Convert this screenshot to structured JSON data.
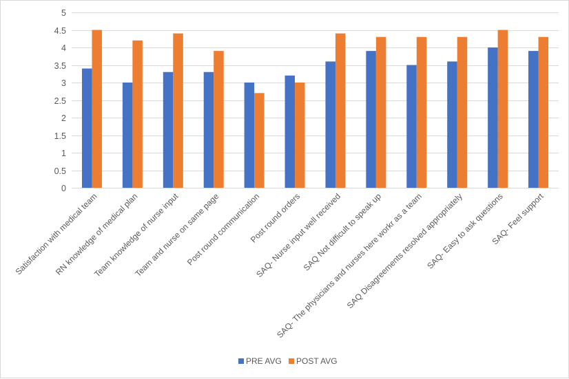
{
  "chart_data": {
    "type": "bar",
    "title": "",
    "xlabel": "",
    "ylabel": "",
    "ylim": [
      0,
      5
    ],
    "yticks": [
      0,
      0.5,
      1,
      1.5,
      2,
      2.5,
      3,
      3.5,
      4,
      4.5,
      5
    ],
    "ytick_labels": [
      "0",
      "0.5",
      "1",
      "1.5",
      "2",
      "2.5",
      "3",
      "3.5",
      "4",
      "4.5",
      "5"
    ],
    "grid": true,
    "legend_position": "bottom",
    "categories": [
      "Satisfaction with medical team",
      "RN knowledge of medical plan",
      "Team knowledge of nurse input",
      "Team and nurse on same page",
      "Post round communication",
      "Post round orders",
      "SAQ- Nurse input well received",
      "SAQ Not difficult to speak up",
      "SAQ- The physicians and nurses here workr as a team",
      "SAQ Disagreements resolved appropriately",
      "SAQ- Easy to ask questions",
      "SAQ- Feel support"
    ],
    "series": [
      {
        "name": "PRE AVG",
        "color": "#4472c4",
        "values": [
          3.4,
          3.0,
          3.3,
          3.3,
          3.0,
          3.2,
          3.6,
          3.9,
          3.5,
          3.6,
          4.0,
          3.9
        ]
      },
      {
        "name": "POST AVG",
        "color": "#ed7d31",
        "values": [
          4.5,
          4.2,
          4.4,
          3.9,
          2.7,
          3.0,
          4.4,
          4.3,
          4.3,
          4.3,
          4.5,
          4.3
        ]
      }
    ]
  }
}
